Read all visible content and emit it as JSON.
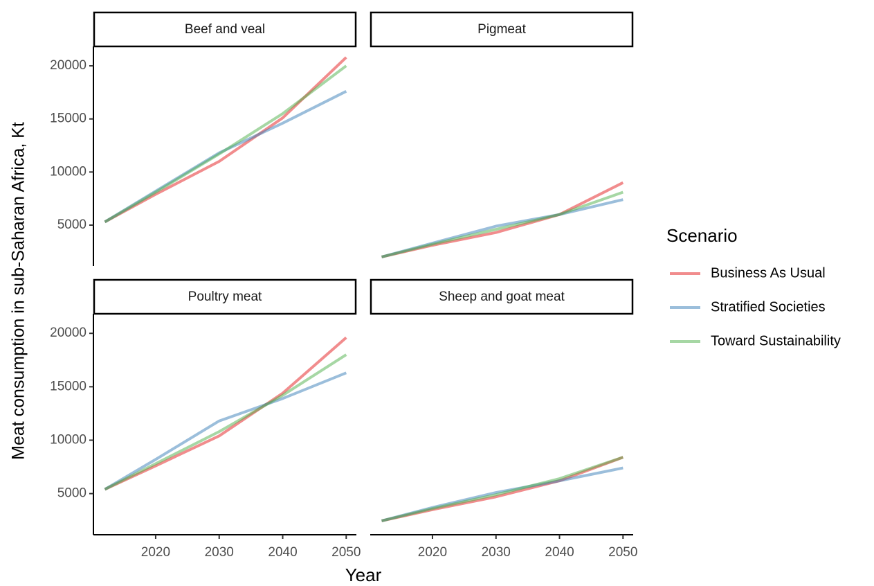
{
  "chart_data": {
    "type": "line",
    "x_label": "Year",
    "y_label": "Meat consumption in sub-Saharan Africa, Kt",
    "legend_title": "Scenario",
    "legend_position": "right",
    "x": [
      2012,
      2020,
      2030,
      2040,
      2050
    ],
    "xlim": [
      2010.2,
      2051.6
    ],
    "xticks": [
      2020,
      2030,
      2040,
      2050
    ],
    "ylim": [
      1150,
      21830
    ],
    "yticks": [
      5000,
      10000,
      15000,
      20000
    ],
    "series": [
      {
        "name": "Business As Usual",
        "color": "#e41a1c"
      },
      {
        "name": "Stratified Societies",
        "color": "#377eb8"
      },
      {
        "name": "Toward Sustainability",
        "color": "#4daf4a"
      }
    ],
    "panels": [
      {
        "title": "Beef and veal",
        "values": [
          [
            5300,
            7900,
            11000,
            15100,
            20800
          ],
          [
            5300,
            8200,
            11800,
            14600,
            17600
          ],
          [
            5300,
            8100,
            11700,
            15500,
            20000
          ]
        ]
      },
      {
        "title": "Pigmeat",
        "values": [
          [
            2000,
            3100,
            4300,
            6000,
            9000
          ],
          [
            2000,
            3300,
            4900,
            6000,
            7400
          ],
          [
            2000,
            3200,
            4600,
            6000,
            8100
          ]
        ]
      },
      {
        "title": "Poultry meat",
        "values": [
          [
            5400,
            7600,
            10400,
            14400,
            19600
          ],
          [
            5400,
            8200,
            11800,
            13900,
            16300
          ],
          [
            5400,
            7800,
            10800,
            14200,
            18000
          ]
        ]
      },
      {
        "title": "Sheep and goat meat",
        "values": [
          [
            2450,
            3500,
            4700,
            6200,
            8400
          ],
          [
            2450,
            3700,
            5100,
            6200,
            7400
          ],
          [
            2450,
            3600,
            4900,
            6400,
            8400
          ]
        ]
      }
    ]
  }
}
